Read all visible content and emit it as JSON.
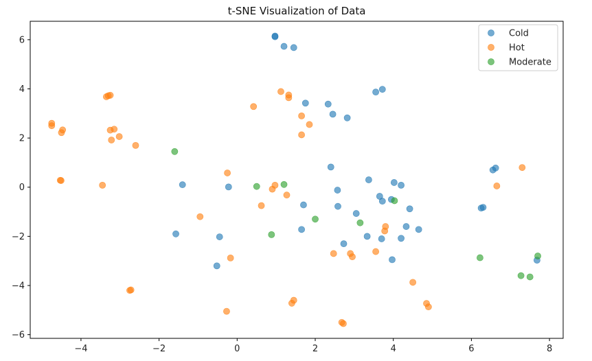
{
  "chart_data": {
    "type": "scatter",
    "title": "t-SNE Visualization of Data",
    "xlabel": "",
    "ylabel": "",
    "xlim": [
      -5.3,
      8.35
    ],
    "ylim": [
      -6.15,
      6.75
    ],
    "xticks": [
      -4,
      -2,
      0,
      2,
      4,
      6,
      8
    ],
    "xtick_labels": [
      "−4",
      "−2",
      "0",
      "2",
      "4",
      "6",
      "8"
    ],
    "yticks": [
      -6,
      -4,
      -2,
      0,
      2,
      4,
      6
    ],
    "ytick_labels": [
      "−6",
      "−4",
      "−2",
      "0",
      "2",
      "4",
      "6"
    ],
    "grid": false,
    "legend_position": "top-right",
    "series": [
      {
        "name": "Cold",
        "color": "#1f77b4",
        "points": [
          [
            0.97,
            6.15
          ],
          [
            0.97,
            6.12
          ],
          [
            1.2,
            5.73
          ],
          [
            1.45,
            5.68
          ],
          [
            3.72,
            3.98
          ],
          [
            3.55,
            3.87
          ],
          [
            1.75,
            3.42
          ],
          [
            2.33,
            3.38
          ],
          [
            2.45,
            2.97
          ],
          [
            2.82,
            2.82
          ],
          [
            2.4,
            0.82
          ],
          [
            3.37,
            0.3
          ],
          [
            4.02,
            0.19
          ],
          [
            4.2,
            0.08
          ],
          [
            2.57,
            -0.12
          ],
          [
            -1.4,
            0.1
          ],
          [
            -0.22,
            0.01
          ],
          [
            3.65,
            -0.37
          ],
          [
            3.95,
            -0.5
          ],
          [
            3.72,
            -0.57
          ],
          [
            1.7,
            -0.72
          ],
          [
            2.58,
            -0.78
          ],
          [
            4.42,
            -0.88
          ],
          [
            3.05,
            -1.07
          ],
          [
            1.65,
            -1.72
          ],
          [
            4.33,
            -1.6
          ],
          [
            4.65,
            -1.72
          ],
          [
            -1.57,
            -1.9
          ],
          [
            -0.45,
            -2.02
          ],
          [
            3.33,
            -2.0
          ],
          [
            3.7,
            -2.1
          ],
          [
            4.2,
            -2.08
          ],
          [
            2.73,
            -2.3
          ],
          [
            -0.52,
            -3.2
          ],
          [
            3.97,
            -2.95
          ],
          [
            6.55,
            0.7
          ],
          [
            6.62,
            0.78
          ],
          [
            6.25,
            -0.85
          ],
          [
            6.3,
            -0.82
          ],
          [
            7.68,
            -2.97
          ]
        ]
      },
      {
        "name": "Hot",
        "color": "#ff7f0e",
        "points": [
          [
            -4.75,
            2.6
          ],
          [
            -4.75,
            2.5
          ],
          [
            -4.47,
            2.33
          ],
          [
            -4.5,
            2.22
          ],
          [
            -4.53,
            0.28
          ],
          [
            -4.51,
            0.27
          ],
          [
            -3.3,
            3.72
          ],
          [
            -3.25,
            3.74
          ],
          [
            -3.35,
            3.68
          ],
          [
            -3.25,
            2.32
          ],
          [
            -3.15,
            2.36
          ],
          [
            -3.22,
            1.92
          ],
          [
            -3.02,
            2.06
          ],
          [
            -2.6,
            1.7
          ],
          [
            -3.45,
            0.08
          ],
          [
            -2.75,
            -4.2
          ],
          [
            -2.72,
            -4.18
          ],
          [
            -0.95,
            -1.2
          ],
          [
            -0.25,
            0.58
          ],
          [
            -0.17,
            -2.88
          ],
          [
            -0.27,
            -5.05
          ],
          [
            0.42,
            3.28
          ],
          [
            1.12,
            3.89
          ],
          [
            1.32,
            3.75
          ],
          [
            1.32,
            3.64
          ],
          [
            1.65,
            2.9
          ],
          [
            1.85,
            2.55
          ],
          [
            1.65,
            2.13
          ],
          [
            0.97,
            0.08
          ],
          [
            0.9,
            -0.08
          ],
          [
            1.27,
            -0.32
          ],
          [
            0.62,
            -0.75
          ],
          [
            1.45,
            -4.6
          ],
          [
            1.4,
            -4.72
          ],
          [
            2.68,
            -5.5
          ],
          [
            2.72,
            -5.55
          ],
          [
            2.47,
            -2.7
          ],
          [
            2.9,
            -2.7
          ],
          [
            2.95,
            -2.83
          ],
          [
            3.55,
            -2.62
          ],
          [
            3.8,
            -1.6
          ],
          [
            3.78,
            -1.78
          ],
          [
            4.5,
            -3.87
          ],
          [
            4.85,
            -4.73
          ],
          [
            4.9,
            -4.87
          ],
          [
            6.65,
            0.05
          ],
          [
            7.3,
            0.8
          ]
        ]
      },
      {
        "name": "Moderate",
        "color": "#2ca02c",
        "points": [
          [
            -1.6,
            1.45
          ],
          [
            0.5,
            0.03
          ],
          [
            1.2,
            0.11
          ],
          [
            0.88,
            -1.93
          ],
          [
            2.0,
            -1.3
          ],
          [
            3.15,
            -1.45
          ],
          [
            4.03,
            -0.55
          ],
          [
            6.22,
            -2.87
          ],
          [
            7.27,
            -3.6
          ],
          [
            7.5,
            -3.65
          ],
          [
            7.7,
            -2.8
          ]
        ]
      }
    ]
  }
}
